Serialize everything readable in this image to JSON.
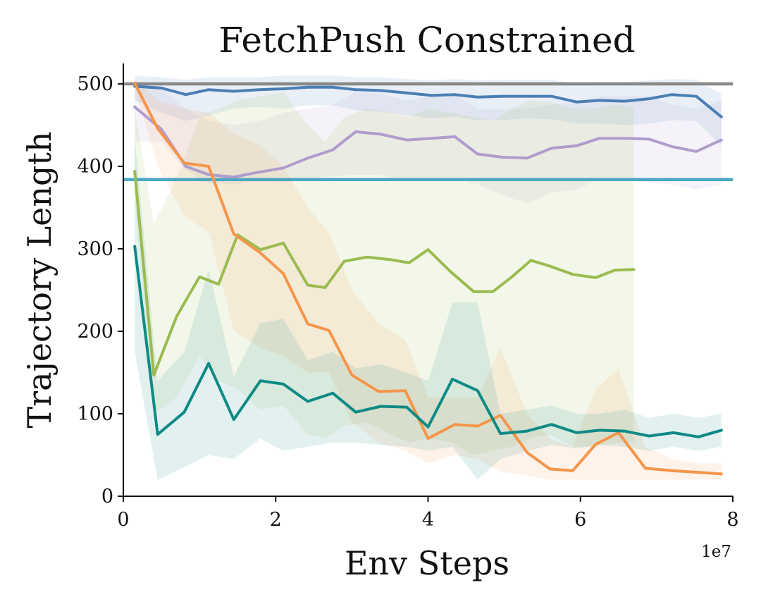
{
  "chart_data": {
    "type": "line",
    "title": "FetchPush Constrained",
    "xlabel": "Env Steps",
    "ylabel": "Trajectory Length",
    "x_offset_label": "1e7",
    "xlim": [
      0,
      8
    ],
    "ylim": [
      0,
      525
    ],
    "xticks": [
      0,
      2,
      4,
      6,
      8
    ],
    "xtick_labels": [
      "0",
      "2",
      "4",
      "6",
      "8"
    ],
    "yticks": [
      0,
      100,
      200,
      300,
      400,
      500
    ],
    "ytick_labels": [
      "0",
      "100",
      "200",
      "300",
      "400",
      "500"
    ],
    "grid": false,
    "hlines": [
      {
        "name": "gray-reference",
        "y": 500,
        "color": "#888888"
      },
      {
        "name": "cyan-reference",
        "y": 384,
        "color": "#4aa8c4"
      }
    ],
    "series": [
      {
        "name": "blue",
        "color": "#4a7fb5",
        "x": [
          0.15,
          0.5,
          0.82,
          1.12,
          1.45,
          1.78,
          2.1,
          2.42,
          2.75,
          3.05,
          3.38,
          3.72,
          4.05,
          4.35,
          4.65,
          4.98,
          5.3,
          5.62,
          5.95,
          6.25,
          6.58,
          6.9,
          7.2,
          7.52,
          7.85
        ],
        "y": [
          497,
          495,
          487,
          493,
          491,
          493,
          494,
          496,
          496,
          493,
          492,
          489,
          486,
          487,
          484,
          485,
          485,
          485,
          478,
          480,
          479,
          482,
          487,
          485,
          460
        ],
        "lower": [
          480,
          465,
          455,
          462,
          470,
          472,
          470,
          474,
          474,
          468,
          466,
          462,
          458,
          460,
          456,
          456,
          458,
          457,
          452,
          452,
          450,
          452,
          456,
          455,
          425
        ],
        "upper": [
          510,
          508,
          505,
          508,
          508,
          508,
          510,
          510,
          510,
          508,
          508,
          506,
          504,
          506,
          504,
          505,
          505,
          505,
          500,
          502,
          502,
          504,
          506,
          505,
          488
        ]
      },
      {
        "name": "purple",
        "color": "#b09ccc",
        "x": [
          0.15,
          0.5,
          0.82,
          1.12,
          1.45,
          1.78,
          2.1,
          2.42,
          2.75,
          3.05,
          3.38,
          3.72,
          4.05,
          4.35,
          4.65,
          4.98,
          5.3,
          5.62,
          5.95,
          6.25,
          6.58,
          6.9,
          7.2,
          7.52,
          7.85
        ],
        "y": [
          472,
          445,
          400,
          390,
          387,
          393,
          398,
          410,
          420,
          442,
          439,
          432,
          434,
          436,
          415,
          411,
          410,
          422,
          425,
          434,
          434,
          433,
          424,
          418,
          432
        ],
        "lower": [
          430,
          430,
          395,
          380,
          378,
          382,
          380,
          385,
          388,
          390,
          390,
          382,
          385,
          385,
          378,
          365,
          355,
          368,
          372,
          385,
          385,
          380,
          378,
          372,
          378
        ],
        "upper": [
          500,
          495,
          470,
          455,
          450,
          455,
          465,
          470,
          475,
          490,
          488,
          480,
          485,
          488,
          470,
          470,
          470,
          475,
          478,
          485,
          485,
          485,
          475,
          470,
          480
        ]
      },
      {
        "name": "green",
        "color": "#9bbb50",
        "x": [
          0.15,
          0.4,
          0.7,
          1.0,
          1.25,
          1.5,
          1.8,
          2.1,
          2.42,
          2.65,
          2.9,
          3.2,
          3.5,
          3.75,
          4.0,
          4.3,
          4.6,
          4.85,
          5.1,
          5.35,
          5.6,
          5.9,
          6.2,
          6.45,
          6.7
        ],
        "y": [
          394,
          147,
          218,
          266,
          257,
          317,
          299,
          307,
          256,
          253,
          285,
          290,
          287,
          283,
          299,
          272,
          248,
          248,
          266,
          286,
          279,
          269,
          265,
          274,
          275
        ],
        "lower": [
          360,
          100,
          120,
          170,
          140,
          130,
          105,
          110,
          75,
          70,
          85,
          90,
          75,
          65,
          70,
          65,
          50,
          55,
          60,
          70,
          75,
          60,
          60,
          65,
          65
        ],
        "upper": [
          470,
          330,
          385,
          460,
          470,
          480,
          485,
          490,
          450,
          430,
          460,
          470,
          465,
          460,
          470,
          465,
          460,
          455,
          470,
          480,
          478,
          470,
          470,
          475,
          472
        ]
      },
      {
        "name": "orange",
        "color": "#f5954a",
        "x": [
          0.15,
          0.45,
          0.8,
          1.12,
          1.45,
          1.8,
          2.1,
          2.42,
          2.7,
          3.0,
          3.35,
          3.7,
          4.0,
          4.35,
          4.65,
          4.95,
          5.3,
          5.6,
          5.9,
          6.2,
          6.5,
          6.85,
          7.2,
          7.55,
          7.85
        ],
        "y": [
          501,
          446,
          404,
          400,
          318,
          295,
          270,
          209,
          201,
          147,
          127,
          128,
          70,
          87,
          85,
          98,
          53,
          33,
          31,
          63,
          77,
          34,
          31,
          29,
          27
        ],
        "lower": [
          495,
          400,
          340,
          320,
          200,
          180,
          170,
          150,
          150,
          90,
          65,
          55,
          40,
          50,
          45,
          30,
          25,
          20,
          20,
          20,
          20,
          20,
          20,
          20,
          20
        ],
        "upper": [
          505,
          480,
          470,
          465,
          440,
          425,
          400,
          350,
          320,
          250,
          210,
          190,
          120,
          120,
          120,
          180,
          100,
          70,
          60,
          130,
          155,
          60,
          45,
          40,
          40
        ]
      },
      {
        "name": "teal",
        "color": "#0f8a85",
        "x": [
          0.15,
          0.45,
          0.8,
          1.12,
          1.45,
          1.8,
          2.1,
          2.42,
          2.75,
          3.05,
          3.38,
          3.72,
          4.0,
          4.32,
          4.65,
          4.95,
          5.3,
          5.62,
          5.95,
          6.25,
          6.58,
          6.9,
          7.22,
          7.55,
          7.85
        ],
        "y": [
          303,
          75,
          102,
          161,
          93,
          140,
          136,
          115,
          125,
          102,
          109,
          108,
          84,
          142,
          128,
          76,
          79,
          87,
          77,
          80,
          79,
          73,
          77,
          72,
          80
        ],
        "lower": [
          175,
          20,
          35,
          50,
          45,
          70,
          55,
          60,
          65,
          65,
          62,
          60,
          55,
          60,
          20,
          45,
          55,
          62,
          58,
          62,
          60,
          55,
          60,
          55,
          60
        ],
        "upper": [
          435,
          140,
          175,
          275,
          145,
          210,
          215,
          165,
          175,
          155,
          160,
          150,
          140,
          235,
          235,
          100,
          105,
          110,
          100,
          100,
          105,
          95,
          100,
          95,
          100
        ]
      }
    ]
  }
}
